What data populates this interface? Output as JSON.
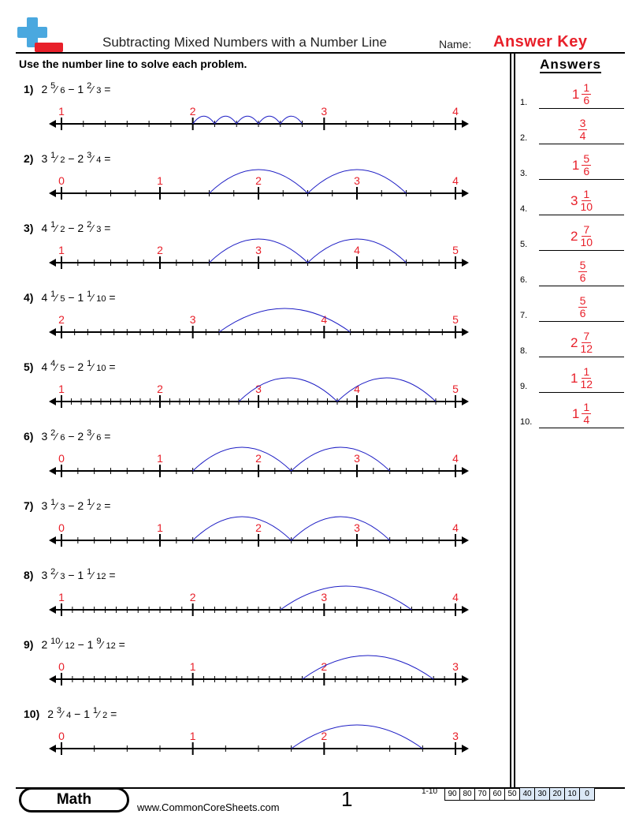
{
  "header": {
    "title": "Subtracting Mixed Numbers with a Number Line",
    "name_label": "Name:",
    "answer_key": "Answer Key"
  },
  "instructions": "Use the number line to solve each problem.",
  "answers_title": "Answers",
  "problems": [
    {
      "label": "1)",
      "a_whole": "2",
      "a_num": "5",
      "a_den": "6",
      "b_whole": "1",
      "b_num": "2",
      "b_den": "3",
      "start": 1,
      "ticks": 3,
      "sub": 6,
      "min": 2.833333,
      "sub_w": 0.833333,
      "sub_step": 0.166667,
      "ans_whole": "1",
      "ans_num": "1",
      "ans_den": "6"
    },
    {
      "label": "2)",
      "a_whole": "3",
      "a_num": "1",
      "a_den": "2",
      "b_whole": "2",
      "b_num": "3",
      "b_den": "4",
      "start": 0,
      "ticks": 4,
      "sub": 4,
      "min": 3.5,
      "sub_w": 2,
      "sub_step": 0.25,
      "ans_whole": "",
      "ans_num": "3",
      "ans_den": "4"
    },
    {
      "label": "3)",
      "a_whole": "4",
      "a_num": "1",
      "a_den": "2",
      "b_whole": "2",
      "b_num": "2",
      "b_den": "3",
      "start": 1,
      "ticks": 4,
      "sub": 6,
      "min": 4.5,
      "sub_w": 2,
      "sub_step": 0.166667,
      "ans_whole": "1",
      "ans_num": "5",
      "ans_den": "6"
    },
    {
      "label": "4)",
      "a_whole": "4",
      "a_num": "1",
      "a_den": "5",
      "b_whole": "1",
      "b_num": "1",
      "b_den": "10",
      "start": 2,
      "ticks": 3,
      "sub": 10,
      "min": 4.2,
      "sub_w": 1,
      "sub_step": 0.1,
      "ans_whole": "3",
      "ans_num": "1",
      "ans_den": "10"
    },
    {
      "label": "5)",
      "a_whole": "4",
      "a_num": "4",
      "a_den": "5",
      "b_whole": "2",
      "b_num": "1",
      "b_den": "10",
      "start": 1,
      "ticks": 4,
      "sub": 10,
      "min": 4.8,
      "sub_w": 2,
      "sub_step": 0.1,
      "ans_whole": "2",
      "ans_num": "7",
      "ans_den": "10"
    },
    {
      "label": "6)",
      "a_whole": "3",
      "a_num": "2",
      "a_den": "6",
      "b_whole": "2",
      "b_num": "3",
      "b_den": "6",
      "start": 0,
      "ticks": 4,
      "sub": 6,
      "min": 3.333333,
      "sub_w": 2,
      "sub_step": 0.166667,
      "ans_whole": "",
      "ans_num": "5",
      "ans_den": "6"
    },
    {
      "label": "7)",
      "a_whole": "3",
      "a_num": "1",
      "a_den": "3",
      "b_whole": "2",
      "b_num": "1",
      "b_den": "2",
      "start": 0,
      "ticks": 4,
      "sub": 6,
      "min": 3.333333,
      "sub_w": 2,
      "sub_step": 0.166667,
      "ans_whole": "",
      "ans_num": "5",
      "ans_den": "6"
    },
    {
      "label": "8)",
      "a_whole": "3",
      "a_num": "2",
      "a_den": "3",
      "b_whole": "1",
      "b_num": "1",
      "b_den": "12",
      "start": 1,
      "ticks": 3,
      "sub": 12,
      "min": 3.666667,
      "sub_w": 1,
      "sub_step": 0.083333,
      "ans_whole": "2",
      "ans_num": "7",
      "ans_den": "12"
    },
    {
      "label": "9)",
      "a_whole": "2",
      "a_num": "10",
      "a_den": "12",
      "b_whole": "1",
      "b_num": "9",
      "b_den": "12",
      "start": 0,
      "ticks": 3,
      "sub": 12,
      "min": 2.833333,
      "sub_w": 1,
      "sub_step": 0.083333,
      "ans_whole": "1",
      "ans_num": "1",
      "ans_den": "12"
    },
    {
      "label": "10)",
      "a_whole": "2",
      "a_num": "3",
      "a_den": "4",
      "b_whole": "1",
      "b_num": "1",
      "b_den": "2",
      "start": 0,
      "ticks": 3,
      "sub": 4,
      "min": 2.75,
      "sub_w": 1,
      "sub_step": 0.25,
      "ans_whole": "1",
      "ans_num": "1",
      "ans_den": "4"
    }
  ],
  "answers": [
    {
      "n": "1.",
      "whole": "1",
      "num": "1",
      "den": "6"
    },
    {
      "n": "2.",
      "whole": "",
      "num": "3",
      "den": "4"
    },
    {
      "n": "3.",
      "whole": "1",
      "num": "5",
      "den": "6"
    },
    {
      "n": "4.",
      "whole": "3",
      "num": "1",
      "den": "10"
    },
    {
      "n": "5.",
      "whole": "2",
      "num": "7",
      "den": "10"
    },
    {
      "n": "6.",
      "whole": "",
      "num": "5",
      "den": "6"
    },
    {
      "n": "7.",
      "whole": "",
      "num": "5",
      "den": "6"
    },
    {
      "n": "8.",
      "whole": "2",
      "num": "7",
      "den": "12"
    },
    {
      "n": "9.",
      "whole": "1",
      "num": "1",
      "den": "12"
    },
    {
      "n": "10.",
      "whole": "1",
      "num": "1",
      "den": "4"
    }
  ],
  "colors": {
    "accent": "#e8202a",
    "arc": "#1c1cc4",
    "logo_blue": "#4aa8df",
    "score_blue": "#dbe8f6"
  },
  "footer": {
    "math_label": "Math",
    "site": "www.CommonCoreSheets.com",
    "page": "1",
    "score_label": "1-10",
    "scores": [
      "90",
      "80",
      "70",
      "60",
      "50",
      "40",
      "30",
      "20",
      "10",
      "0"
    ]
  }
}
